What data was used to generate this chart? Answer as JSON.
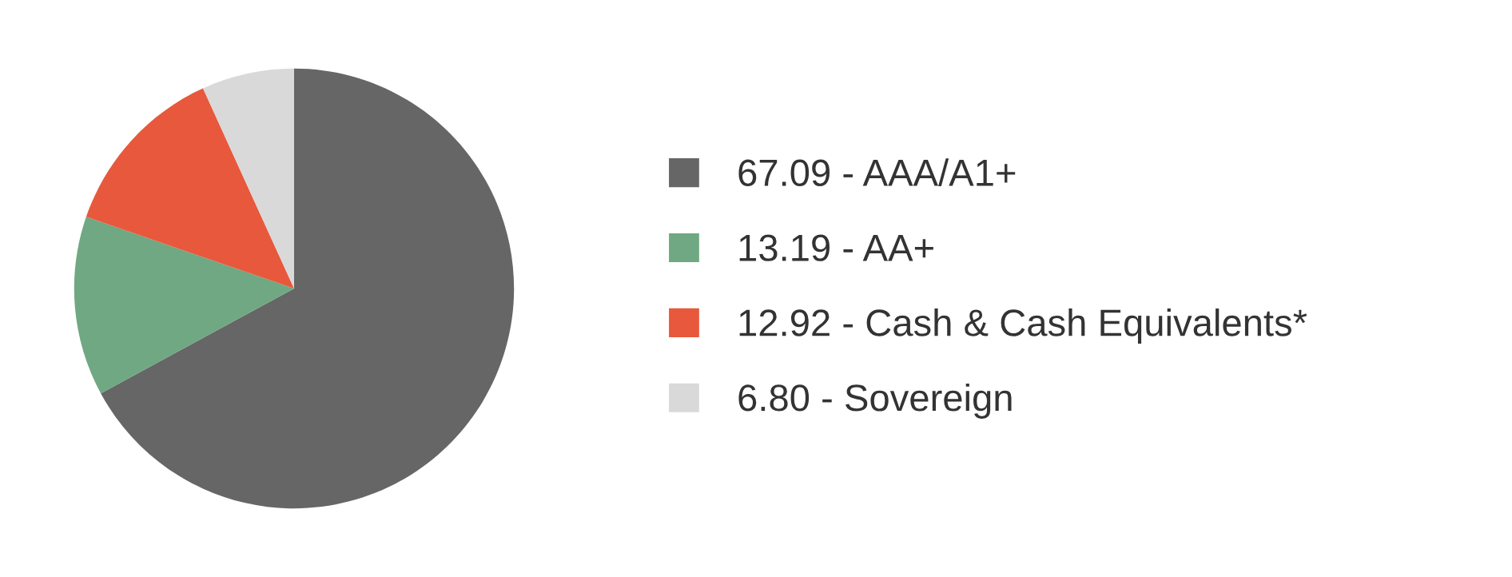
{
  "chart_data": {
    "type": "pie",
    "categories": [
      "67.09 - AAA/A1+",
      "13.19 - AA+",
      "12.92 - Cash & Cash Equivalents*",
      "6.80 - Sovereign"
    ],
    "values": [
      67.09,
      13.19,
      12.92,
      6.8
    ],
    "colors": [
      "#666666",
      "#6fa882",
      "#e8583c",
      "#d9d9d9"
    ],
    "legend": "right"
  }
}
